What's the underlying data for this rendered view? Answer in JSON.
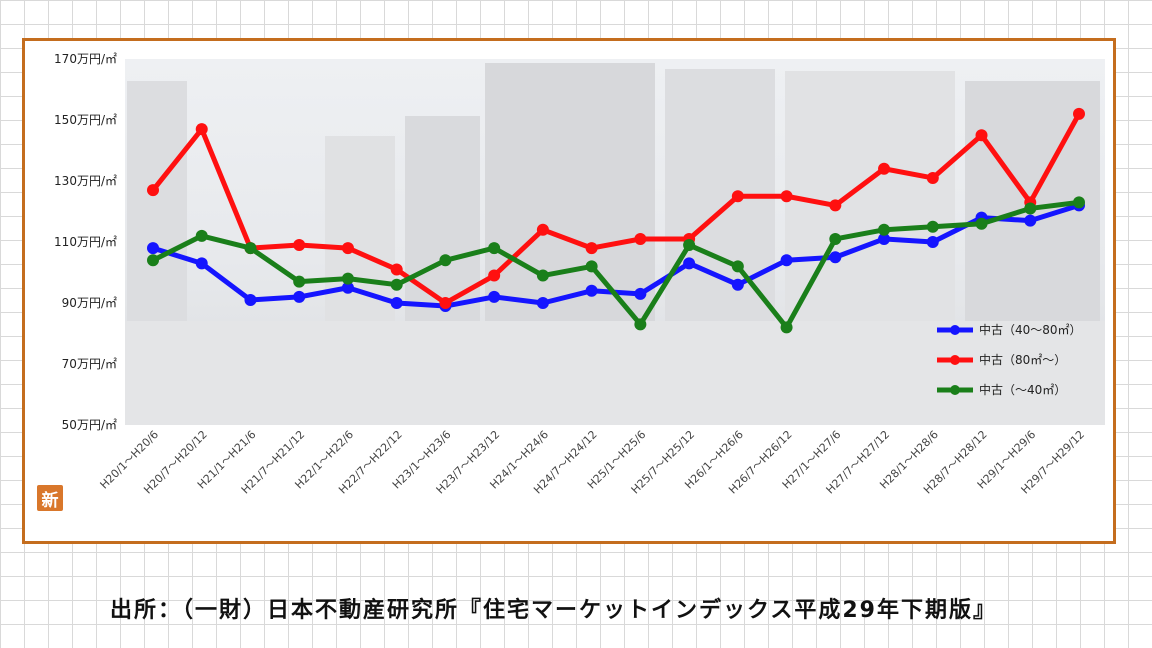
{
  "chart_data": {
    "type": "line",
    "categories": [
      "H20/1～H20/6",
      "H20/7～H20/12",
      "H21/1～H21/6",
      "H21/7～H21/12",
      "H22/1～H22/6",
      "H22/7～H22/12",
      "H23/1～H23/6",
      "H23/7～H23/12",
      "H24/1～H24/6",
      "H24/7～H24/12",
      "H25/1～H25/6",
      "H25/7～H25/12",
      "H26/1～H26/6",
      "H26/7～H26/12",
      "H27/1～H27/6",
      "H27/7～H27/12",
      "H28/1～H28/6",
      "H28/7～H28/12",
      "H29/1～H29/6",
      "H29/7～H29/12"
    ],
    "series": [
      {
        "name": "中古（40～80㎡）",
        "color": "#1515ff",
        "values": [
          108,
          103,
          91,
          92,
          95,
          90,
          89,
          92,
          90,
          94,
          93,
          103,
          96,
          104,
          105,
          111,
          110,
          118,
          117,
          122
        ]
      },
      {
        "name": "中古（80㎡～）",
        "color": "#ff1010",
        "values": [
          127,
          147,
          108,
          109,
          108,
          101,
          90,
          99,
          114,
          108,
          111,
          111,
          125,
          125,
          122,
          134,
          131,
          145,
          123,
          152
        ]
      },
      {
        "name": "中古（～40㎡）",
        "color": "#1a7f1a",
        "values": [
          104,
          112,
          108,
          97,
          98,
          96,
          104,
          108,
          99,
          102,
          83,
          109,
          102,
          82,
          111,
          114,
          115,
          116,
          121,
          123
        ]
      }
    ],
    "y_ticks": [
      "50万円/㎡",
      "70万円/㎡",
      "90万円/㎡",
      "110万円/㎡",
      "130万円/㎡",
      "150万円/㎡",
      "170万円/㎡"
    ],
    "ylim": [
      50,
      170
    ],
    "y_step": 20,
    "grid": false,
    "legend_position": "bottom-right"
  },
  "logo_text": "新",
  "source_caption": "出所：（一財）日本不動産研究所『住宅マーケットインデックス平成29年下期版』"
}
